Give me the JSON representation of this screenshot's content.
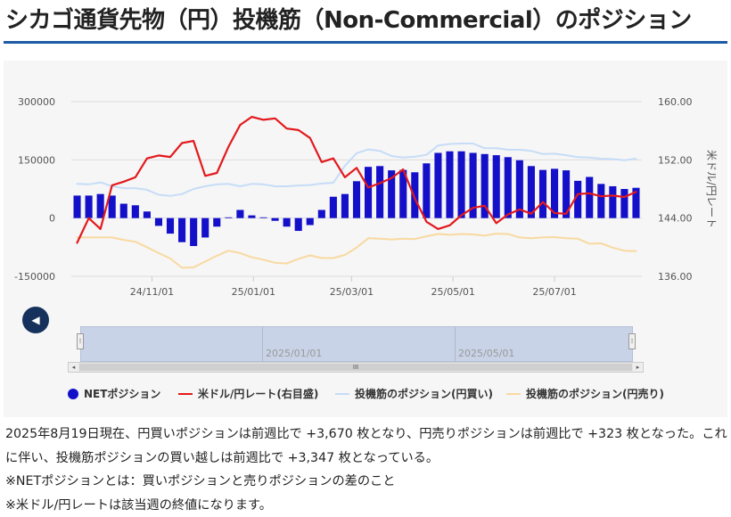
{
  "page": {
    "title": "シカゴ通貨先物（円）投機筋（Non-Commercial）のポジション"
  },
  "legend": {
    "net": "NETポジション",
    "rate": "米ドル/円レート(右目盛)",
    "long": "投機筋のポジション(円買い)",
    "short": "投機筋のポジション(円売り)"
  },
  "navigator": {
    "labels": [
      "2025/01/01",
      "2025/05/01"
    ],
    "back_icon": "◀",
    "handle_icon": "⁞",
    "scroll_icon": "III",
    "left_icon": "◂",
    "right_icon": "▸"
  },
  "description": {
    "line1": "2025年8月19日現在、円買いポジションは前週比で +3,670 枚となり、円売りポジションは前週比で +323 枚となった。これに伴い、投機筋ポジションの買い越しは前週比で +3,347 枚となっている。",
    "line2": "※NETポジションとは：買いポジションと売りポジションの差のこと",
    "line3": "※米ドル/円レートは該当週の終値になります。"
  },
  "colors": {
    "net": "#1410c9",
    "rate": "#e3191c",
    "long": "#c6dcf7",
    "short": "#f8d9a0",
    "title_rule": "#1d5aa6"
  },
  "chart_data": {
    "type": "bar",
    "x_tick_labels": [
      "24/11/01",
      "25/01/01",
      "25/03/01",
      "25/05/01",
      "25/07/01"
    ],
    "x_tick_dates": [
      "2024-11-01",
      "2025-01-01",
      "2025-03-01",
      "2025-05-01",
      "2025-07-01"
    ],
    "left_axis": {
      "ticks": [
        "300000",
        "150000",
        "0",
        "-150000"
      ],
      "min": -150000,
      "max": 300000
    },
    "right_axis": {
      "label": "米ドル/円レート",
      "ticks": [
        "160.00",
        "152.00",
        "144.00",
        "136.00"
      ],
      "min": 136,
      "max": 160
    },
    "dates": [
      "2024-09-17",
      "2024-09-24",
      "2024-10-01",
      "2024-10-08",
      "2024-10-15",
      "2024-10-22",
      "2024-10-29",
      "2024-11-05",
      "2024-11-12",
      "2024-11-19",
      "2024-11-26",
      "2024-12-03",
      "2024-12-10",
      "2024-12-17",
      "2024-12-24",
      "2024-12-31",
      "2025-01-07",
      "2025-01-14",
      "2025-01-21",
      "2025-01-28",
      "2025-02-04",
      "2025-02-11",
      "2025-02-18",
      "2025-02-25",
      "2025-03-04",
      "2025-03-11",
      "2025-03-18",
      "2025-03-25",
      "2025-04-01",
      "2025-04-08",
      "2025-04-15",
      "2025-04-22",
      "2025-04-29",
      "2025-05-06",
      "2025-05-13",
      "2025-05-20",
      "2025-05-27",
      "2025-06-03",
      "2025-06-10",
      "2025-06-17",
      "2025-06-24",
      "2025-07-01",
      "2025-07-08",
      "2025-07-15",
      "2025-07-22",
      "2025-07-29",
      "2025-08-05",
      "2025-08-12",
      "2025-08-19"
    ],
    "series": [
      {
        "name": "NETポジション",
        "type": "bar",
        "axis": "left",
        "values": [
          58000,
          58000,
          62000,
          58000,
          37000,
          33000,
          17000,
          -20000,
          -40000,
          -62000,
          -72000,
          -50000,
          -22000,
          2000,
          21000,
          7000,
          2000,
          -7000,
          -22000,
          -33000,
          -18000,
          21000,
          55000,
          62000,
          95000,
          132000,
          134000,
          123000,
          124000,
          118000,
          141000,
          168000,
          172000,
          172000,
          168000,
          165000,
          162000,
          157000,
          149000,
          134000,
          124000,
          127000,
          123000,
          96000,
          106000,
          88000,
          82000,
          75000,
          78000
        ]
      },
      {
        "name": "米ドル/円レート(右目盛)",
        "type": "line",
        "axis": "right",
        "values": [
          140.6,
          144.0,
          142.5,
          148.5,
          149.0,
          149.6,
          152.2,
          152.6,
          152.4,
          154.3,
          154.6,
          149.8,
          150.2,
          153.8,
          156.8,
          157.9,
          157.5,
          157.7,
          156.3,
          156.1,
          155.0,
          151.7,
          152.2,
          149.6,
          150.9,
          148.2,
          148.8,
          149.5,
          150.7,
          146.7,
          143.5,
          142.5,
          143.0,
          144.4,
          145.4,
          145.7,
          143.3,
          144.5,
          145.2,
          144.6,
          146.2,
          144.7,
          144.6,
          147.3,
          147.4,
          147.0,
          147.1,
          146.9,
          147.6
        ]
      },
      {
        "name": "投機筋のポジション(円買い)",
        "type": "line",
        "axis": "left",
        "values": [
          88000,
          87000,
          92000,
          82000,
          77000,
          77000,
          73000,
          60000,
          57000,
          62000,
          75000,
          82000,
          87000,
          88000,
          82000,
          88000,
          87000,
          82000,
          82000,
          84000,
          85000,
          89000,
          91000,
          135000,
          167000,
          177000,
          173000,
          160000,
          156000,
          158000,
          163000,
          187000,
          191000,
          192000,
          192000,
          180000,
          180000,
          176000,
          176000,
          173000,
          165000,
          166000,
          162000,
          157000,
          156000,
          153000,
          152000,
          149000,
          153000
        ]
      },
      {
        "name": "投機筋のポジション(円売り)",
        "type": "line",
        "axis": "left",
        "values": [
          -50000,
          -50000,
          -50000,
          -50000,
          -56000,
          -61000,
          -75000,
          -90000,
          -104000,
          -128000,
          -127000,
          -112000,
          -97000,
          -84000,
          -90000,
          -101000,
          -107000,
          -115000,
          -117000,
          -105000,
          -96000,
          -103000,
          -103000,
          -95000,
          -76000,
          -52000,
          -53000,
          -55000,
          -53000,
          -54000,
          -47000,
          -41000,
          -43000,
          -41000,
          -42000,
          -45000,
          -40000,
          -41000,
          -50000,
          -52000,
          -50000,
          -49000,
          -52000,
          -53000,
          -66000,
          -65000,
          -76000,
          -84000,
          -85000
        ]
      }
    ],
    "legend_position": "bottom",
    "grid": true
  }
}
